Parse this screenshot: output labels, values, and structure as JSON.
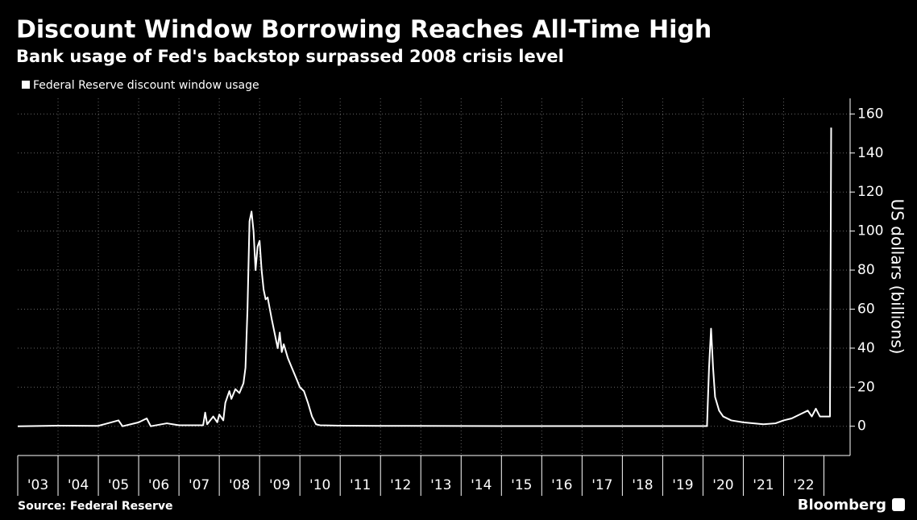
{
  "chart_data": {
    "type": "line",
    "title": "Discount Window Borrowing Reaches All-Time High",
    "subtitle": "Bank usage of Fed's backstop surpassed 2008 crisis level",
    "y_label": "US dollars (billions)",
    "source": "Source: Federal Reserve",
    "brand": "Bloomberg",
    "grid": true,
    "legend": "top-left",
    "xlim": [
      2003,
      2023.65
    ],
    "ylim": [
      -15,
      168
    ],
    "yticks": [
      0,
      20,
      40,
      60,
      80,
      100,
      120,
      140,
      160
    ],
    "xticks": [
      {
        "value": 2003.5,
        "label": "'03"
      },
      {
        "value": 2004.5,
        "label": "'04"
      },
      {
        "value": 2005.5,
        "label": "'05"
      },
      {
        "value": 2006.5,
        "label": "'06"
      },
      {
        "value": 2007.5,
        "label": "'07"
      },
      {
        "value": 2008.5,
        "label": "'08"
      },
      {
        "value": 2009.5,
        "label": "'09"
      },
      {
        "value": 2010.5,
        "label": "'10"
      },
      {
        "value": 2011.5,
        "label": "'11"
      },
      {
        "value": 2012.5,
        "label": "'12"
      },
      {
        "value": 2013.5,
        "label": "'13"
      },
      {
        "value": 2014.5,
        "label": "'14"
      },
      {
        "value": 2015.5,
        "label": "'15"
      },
      {
        "value": 2016.5,
        "label": "'16"
      },
      {
        "value": 2017.5,
        "label": "'17"
      },
      {
        "value": 2018.5,
        "label": "'18"
      },
      {
        "value": 2019.5,
        "label": "'19"
      },
      {
        "value": 2020.5,
        "label": "'20"
      },
      {
        "value": 2021.5,
        "label": "'21"
      },
      {
        "value": 2022.5,
        "label": "'22"
      }
    ],
    "series": [
      {
        "name": "Federal Reserve discount window usage",
        "color": "#ffffff",
        "x": [
          2003.0,
          2004.0,
          2005.0,
          2005.5,
          2005.6,
          2006.0,
          2006.2,
          2006.3,
          2006.7,
          2007.0,
          2007.6,
          2007.65,
          2007.7,
          2007.85,
          2007.95,
          2008.0,
          2008.1,
          2008.15,
          2008.25,
          2008.3,
          2008.4,
          2008.5,
          2008.6,
          2008.65,
          2008.7,
          2008.75,
          2008.8,
          2008.85,
          2008.9,
          2008.95,
          2009.0,
          2009.05,
          2009.1,
          2009.15,
          2009.2,
          2009.3,
          2009.4,
          2009.45,
          2009.5,
          2009.55,
          2009.6,
          2009.7,
          2009.8,
          2009.9,
          2010.0,
          2010.1,
          2010.2,
          2010.3,
          2010.4,
          2010.5,
          2011.0,
          2012.0,
          2015.0,
          2020.1,
          2020.15,
          2020.2,
          2020.25,
          2020.3,
          2020.4,
          2020.5,
          2020.7,
          2021.0,
          2021.5,
          2021.8,
          2022.0,
          2022.2,
          2022.4,
          2022.6,
          2022.7,
          2022.8,
          2022.9,
          2023.0,
          2023.15,
          2023.18
        ],
        "values": [
          0,
          0.3,
          0.2,
          3,
          0,
          2,
          4,
          0,
          1.5,
          0.5,
          0.5,
          7,
          1,
          5,
          2,
          6,
          3,
          12,
          18,
          14,
          19,
          17,
          22,
          30,
          60,
          105,
          110,
          100,
          80,
          92,
          95,
          80,
          70,
          65,
          66,
          55,
          45,
          40,
          48,
          38,
          42,
          35,
          30,
          25,
          20,
          18,
          12,
          5,
          1,
          0.5,
          0.3,
          0.2,
          0.1,
          0.1,
          30,
          50,
          30,
          15,
          8,
          5,
          3,
          2,
          1,
          1.5,
          3,
          4,
          6,
          8,
          5,
          9,
          5,
          5,
          5,
          153
        ]
      }
    ]
  }
}
